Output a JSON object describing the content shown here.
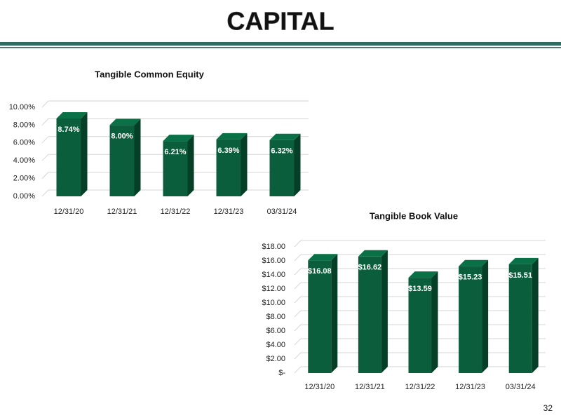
{
  "header": {
    "title": "CAPITAL"
  },
  "page_number": "32",
  "chart_data": [
    {
      "type": "bar3d",
      "title": "Tangible Common Equity",
      "categories": [
        "12/31/20",
        "12/31/21",
        "12/31/22",
        "12/31/23",
        "03/31/24"
      ],
      "values": [
        8.74,
        8.0,
        6.21,
        6.39,
        6.32
      ],
      "value_labels": [
        "8.74%",
        "8.00%",
        "6.21%",
        "6.39%",
        "6.32%"
      ],
      "color": "#0b5e3c",
      "ylim": [
        0,
        10
      ],
      "yticks": [
        {
          "value": 0,
          "label": "0.00%"
        },
        {
          "value": 2,
          "label": "2.00%"
        },
        {
          "value": 4,
          "label": "4.00%"
        },
        {
          "value": 6,
          "label": "6.00%"
        },
        {
          "value": 8,
          "label": "8.00%"
        },
        {
          "value": 10,
          "label": "10.00%"
        }
      ],
      "grid": true
    },
    {
      "type": "bar3d",
      "title": "Tangible Book Value",
      "categories": [
        "12/31/20",
        "12/31/21",
        "12/31/22",
        "12/31/23",
        "03/31/24"
      ],
      "values": [
        16.08,
        16.62,
        13.59,
        15.23,
        15.51
      ],
      "value_labels": [
        "$16.08",
        "$16.62",
        "$13.59",
        "$15.23",
        "$15.51"
      ],
      "color": "#0b5e3c",
      "ylim": [
        0,
        18
      ],
      "yticks": [
        {
          "value": 0,
          "label": "$-"
        },
        {
          "value": 2,
          "label": "$2.00"
        },
        {
          "value": 4,
          "label": "$4.00"
        },
        {
          "value": 6,
          "label": "$6.00"
        },
        {
          "value": 8,
          "label": "$8.00"
        },
        {
          "value": 10,
          "label": "$10.00"
        },
        {
          "value": 12,
          "label": "$12.00"
        },
        {
          "value": 14,
          "label": "$14.00"
        },
        {
          "value": 16,
          "label": "$16.00"
        },
        {
          "value": 18,
          "label": "$18.00"
        }
      ],
      "grid": true
    }
  ]
}
